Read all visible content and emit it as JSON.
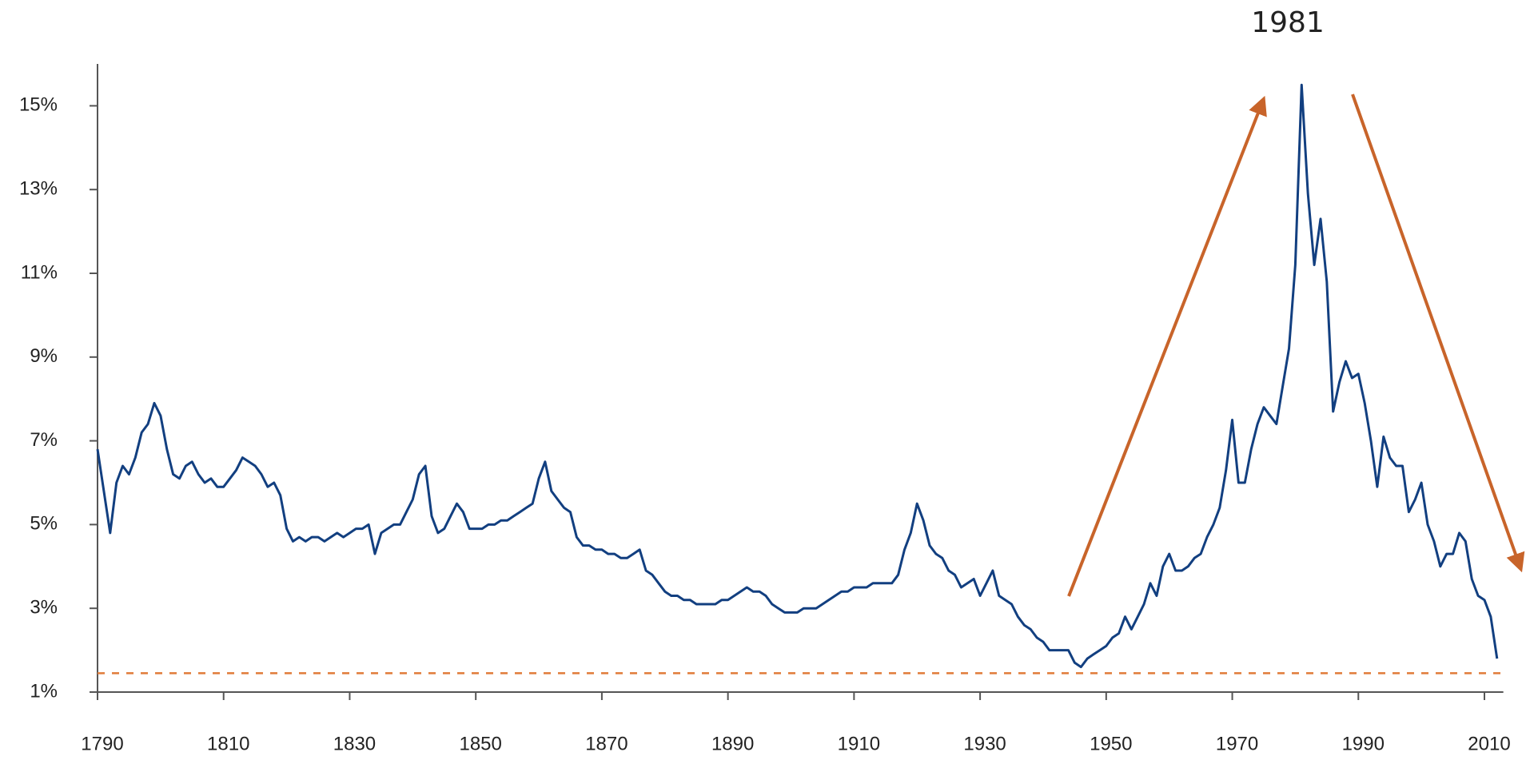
{
  "chart_data": {
    "type": "line",
    "annotations": [
      {
        "text": "1981"
      }
    ],
    "color": "#123f80",
    "xlim": [
      1790,
      2013
    ],
    "ylim": [
      1,
      16
    ],
    "xticks": [
      1790,
      1810,
      1830,
      1850,
      1870,
      1890,
      1910,
      1930,
      1950,
      1970,
      1990,
      2010
    ],
    "yticks": [
      {
        "value": 1,
        "label": "1%"
      },
      {
        "value": 3,
        "label": "3%"
      },
      {
        "value": 5,
        "label": "5%"
      },
      {
        "value": 7,
        "label": "7%"
      },
      {
        "value": 9,
        "label": "9%"
      },
      {
        "value": 11,
        "label": "11%"
      },
      {
        "value": 13,
        "label": "13%"
      },
      {
        "value": 15,
        "label": "15%"
      }
    ],
    "grid": false,
    "reference_line": {
      "value": 1.45,
      "color": "#e07b39",
      "style": "dashed"
    },
    "x": [
      1790,
      1791,
      1792,
      1793,
      1794,
      1795,
      1796,
      1797,
      1798,
      1799,
      1800,
      1801,
      1802,
      1803,
      1804,
      1805,
      1806,
      1807,
      1808,
      1809,
      1810,
      1811,
      1812,
      1813,
      1814,
      1815,
      1816,
      1817,
      1818,
      1819,
      1820,
      1821,
      1822,
      1823,
      1824,
      1825,
      1826,
      1827,
      1828,
      1829,
      1830,
      1831,
      1832,
      1833,
      1834,
      1835,
      1836,
      1837,
      1838,
      1839,
      1840,
      1841,
      1842,
      1843,
      1844,
      1845,
      1846,
      1847,
      1848,
      1849,
      1850,
      1851,
      1852,
      1853,
      1854,
      1855,
      1856,
      1857,
      1858,
      1859,
      1860,
      1861,
      1862,
      1863,
      1864,
      1865,
      1866,
      1867,
      1868,
      1869,
      1870,
      1871,
      1872,
      1873,
      1874,
      1875,
      1876,
      1877,
      1878,
      1879,
      1880,
      1881,
      1882,
      1883,
      1884,
      1885,
      1886,
      1887,
      1888,
      1889,
      1890,
      1891,
      1892,
      1893,
      1894,
      1895,
      1896,
      1897,
      1898,
      1899,
      1900,
      1901,
      1902,
      1903,
      1904,
      1905,
      1906,
      1907,
      1908,
      1909,
      1910,
      1911,
      1912,
      1913,
      1914,
      1915,
      1916,
      1917,
      1918,
      1919,
      1920,
      1921,
      1922,
      1923,
      1924,
      1925,
      1926,
      1927,
      1928,
      1929,
      1930,
      1931,
      1932,
      1933,
      1934,
      1935,
      1936,
      1937,
      1938,
      1939,
      1940,
      1941,
      1942,
      1943,
      1944,
      1945,
      1946,
      1947,
      1948,
      1949,
      1950,
      1951,
      1952,
      1953,
      1954,
      1955,
      1956,
      1957,
      1958,
      1959,
      1960,
      1961,
      1962,
      1963,
      1964,
      1965,
      1966,
      1967,
      1968,
      1969,
      1970,
      1971,
      1972,
      1973,
      1974,
      1975,
      1976,
      1977,
      1978,
      1979,
      1980,
      1981,
      1982,
      1983,
      1984,
      1985,
      1986,
      1987,
      1988,
      1989,
      1990,
      1991,
      1992,
      1993,
      1994,
      1995,
      1996,
      1997,
      1998,
      1999,
      2000,
      2001,
      2002,
      2003,
      2004,
      2005,
      2006,
      2007,
      2008,
      2009,
      2010,
      2011,
      2012
    ],
    "values": [
      6.8,
      5.8,
      4.8,
      6.0,
      6.4,
      6.2,
      6.6,
      7.2,
      7.4,
      7.9,
      7.6,
      6.8,
      6.2,
      6.1,
      6.4,
      6.5,
      6.2,
      6.0,
      6.1,
      5.9,
      5.9,
      6.1,
      6.3,
      6.6,
      6.5,
      6.4,
      6.2,
      5.9,
      6.0,
      5.7,
      4.9,
      4.6,
      4.7,
      4.6,
      4.7,
      4.7,
      4.6,
      4.7,
      4.8,
      4.7,
      4.8,
      4.9,
      4.9,
      5.0,
      4.3,
      4.8,
      4.9,
      5.0,
      5.0,
      5.3,
      5.6,
      6.2,
      6.4,
      5.2,
      4.8,
      4.9,
      5.2,
      5.5,
      5.3,
      4.9,
      4.9,
      4.9,
      5.0,
      5.0,
      5.1,
      5.1,
      5.2,
      5.3,
      5.4,
      5.5,
      6.1,
      6.5,
      5.8,
      5.6,
      5.4,
      5.3,
      4.7,
      4.5,
      4.5,
      4.4,
      4.4,
      4.3,
      4.3,
      4.2,
      4.2,
      4.3,
      4.4,
      3.9,
      3.8,
      3.6,
      3.4,
      3.3,
      3.3,
      3.2,
      3.2,
      3.1,
      3.1,
      3.1,
      3.1,
      3.2,
      3.2,
      3.3,
      3.4,
      3.5,
      3.4,
      3.4,
      3.3,
      3.1,
      3.0,
      2.9,
      2.9,
      2.9,
      3.0,
      3.0,
      3.0,
      3.1,
      3.2,
      3.3,
      3.4,
      3.4,
      3.5,
      3.5,
      3.5,
      3.6,
      3.6,
      3.6,
      3.6,
      3.8,
      4.4,
      4.8,
      5.5,
      5.1,
      4.5,
      4.3,
      4.2,
      3.9,
      3.8,
      3.5,
      3.6,
      3.7,
      3.3,
      3.6,
      3.9,
      3.3,
      3.2,
      3.1,
      2.8,
      2.6,
      2.5,
      2.3,
      2.2,
      2.0,
      2.0,
      2.0,
      2.0,
      1.7,
      1.6,
      1.8,
      1.9,
      2.0,
      2.1,
      2.3,
      2.4,
      2.8,
      2.5,
      2.8,
      3.1,
      3.6,
      3.3,
      4.0,
      4.3,
      3.9,
      3.9,
      4.0,
      4.2,
      4.3,
      4.7,
      5.0,
      5.4,
      6.3,
      7.5,
      6.0,
      6.0,
      6.8,
      7.4,
      7.8,
      7.6,
      7.4,
      8.3,
      9.2,
      11.2,
      15.5,
      12.9,
      11.2,
      12.3,
      10.8,
      7.7,
      8.4,
      8.9,
      8.5,
      8.6,
      7.9,
      7.0,
      5.9,
      7.1,
      6.6,
      6.4,
      6.4,
      5.3,
      5.6,
      6.0,
      5.0,
      4.6,
      4.0,
      4.3,
      4.3,
      4.8,
      4.6,
      3.7,
      3.3,
      3.2,
      2.8,
      1.8
    ]
  }
}
